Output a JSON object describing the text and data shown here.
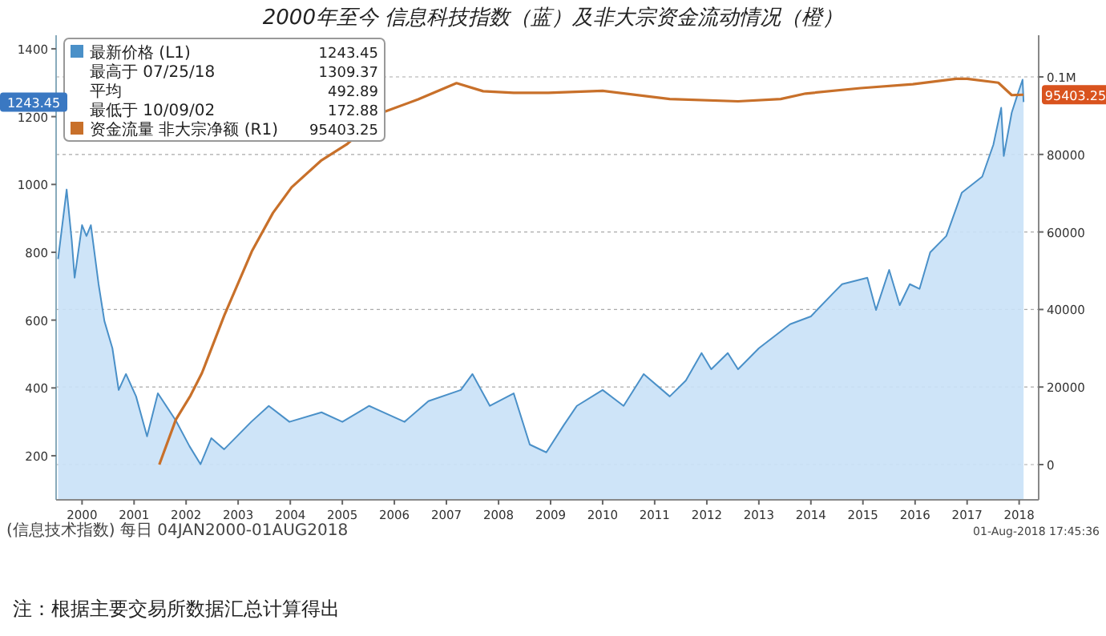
{
  "chart_data": {
    "type": "area",
    "title": "2000年至今 信息科技指数（蓝）及非大宗资金流动情况（橙）",
    "xlim": [
      "2000-01-01",
      "2018-11-15"
    ],
    "xticks": [
      {
        "value": "2000-07-01",
        "label": "2000"
      },
      {
        "value": "2001-07-01",
        "label": "2001"
      },
      {
        "value": "2002-07-01",
        "label": "2002"
      },
      {
        "value": "2003-07-01",
        "label": "2003"
      },
      {
        "value": "2004-07-01",
        "label": "2004"
      },
      {
        "value": "2005-07-01",
        "label": "2005"
      },
      {
        "value": "2006-07-01",
        "label": "2006"
      },
      {
        "value": "2007-07-01",
        "label": "2007"
      },
      {
        "value": "2008-07-01",
        "label": "2008"
      },
      {
        "value": "2009-07-01",
        "label": "2009"
      },
      {
        "value": "2010-07-01",
        "label": "2010"
      },
      {
        "value": "2011-07-01",
        "label": "2011"
      },
      {
        "value": "2012-07-01",
        "label": "2012"
      },
      {
        "value": "2013-07-01",
        "label": "2013"
      },
      {
        "value": "2014-07-01",
        "label": "2014"
      },
      {
        "value": "2015-07-01",
        "label": "2015"
      },
      {
        "value": "2016-07-01",
        "label": "2016"
      },
      {
        "value": "2017-07-01",
        "label": "2017"
      },
      {
        "value": "2018-07-01",
        "label": "2018"
      }
    ],
    "ylim": [
      70,
      1440
    ],
    "yticks": [
      200,
      400,
      600,
      800,
      1000,
      1200,
      1400
    ],
    "y2lim": [
      -9090,
      110740
    ],
    "y2ticks": [
      0,
      20000,
      40000,
      60000,
      80000,
      {
        "value": 100000,
        "label": "0.1M"
      }
    ],
    "grid": true,
    "legend": "top left",
    "series": [
      {
        "name": "最新价格 (L1)",
        "color": "#4a90c8",
        "x": [
          "2000-01-15",
          "2000-03-15",
          "2000-04-20",
          "2000-05-10",
          "2000-07-01",
          "2000-08-01",
          "2000-09-01",
          "2000-10-25",
          "2000-12-05",
          "2001-01-30",
          "2001-03-15",
          "2001-05-05",
          "2001-07-15",
          "2001-09-30",
          "2001-12-15",
          "2002-04-20",
          "2002-07-25",
          "2002-10-10",
          "2002-12-25",
          "2003-03-25",
          "2003-10-01",
          "2004-02-01",
          "2004-06-25",
          "2005-02-05",
          "2005-07-01",
          "2006-01-05",
          "2006-09-10",
          "2007-02-25",
          "2007-10-10",
          "2007-12-31",
          "2008-05-01",
          "2008-10-15",
          "2009-02-05",
          "2009-06-01",
          "2009-10-01",
          "2010-01-01",
          "2010-07-01",
          "2010-11-25",
          "2011-04-15",
          "2011-10-15",
          "2012-02-05",
          "2012-05-25",
          "2012-08-01",
          "2012-11-25",
          "2013-02-05",
          "2013-07-01",
          "2014-02-05",
          "2014-07-01",
          "2014-12-01",
          "2015-02-05",
          "2015-08-01",
          "2015-10-01",
          "2016-01-01",
          "2016-03-15",
          "2016-05-25",
          "2016-08-01",
          "2016-10-15",
          "2017-02-05",
          "2017-05-25",
          "2017-10-15",
          "2018-01-01",
          "2018-02-25",
          "2018-03-15",
          "2018-05-10",
          "2018-06-15",
          "2018-07-25",
          "2018-08-01"
        ],
        "values": [
          780,
          985,
          834,
          725,
          880,
          848,
          880,
          706,
          597,
          517,
          394,
          441,
          375,
          257,
          384,
          304,
          228,
          175,
          252,
          219,
          300,
          347,
          300,
          328,
          300,
          347,
          300,
          361,
          394,
          441,
          347,
          384,
          233,
          210,
          290,
          347,
          394,
          347,
          441,
          375,
          422,
          503,
          455,
          503,
          455,
          517,
          588,
          611,
          678,
          706,
          725,
          630,
          748,
          644,
          706,
          692,
          800,
          848,
          976,
          1023,
          1117,
          1226,
          1084,
          1212,
          1259,
          1309,
          1243
        ]
      },
      {
        "name": "资金流量 非大宗净额 (R1)",
        "type": "line",
        "axis": "y2",
        "color": "#c8702a",
        "x": [
          "2001-12-25",
          "2002-04-20",
          "2002-08-01",
          "2002-10-20",
          "2003-03-25",
          "2003-10-05",
          "2004-03-01",
          "2004-07-10",
          "2005-02-05",
          "2005-08-01",
          "2006-04-15",
          "2006-12-15",
          "2007-09-10",
          "2008-03-15",
          "2008-10-15",
          "2009-06-15",
          "2010-07-01",
          "2011-10-15",
          "2013-02-05",
          "2013-12-01",
          "2014-05-25",
          "2015-06-15",
          "2016-06-15",
          "2017-04-15",
          "2017-07-01",
          "2018-02-05",
          "2018-05-10",
          "2018-08-01"
        ],
        "values": [
          0,
          11600,
          17800,
          23600,
          38400,
          55000,
          64900,
          71500,
          78500,
          82600,
          90900,
          94200,
          98400,
          96300,
          95900,
          95900,
          96400,
          94300,
          93700,
          94300,
          95700,
          97100,
          98100,
          99500,
          99500,
          98500,
          95300,
          95400
        ]
      }
    ],
    "annotations": [
      "最高于 07/25/18",
      "1309.37",
      "平均",
      "492.89",
      "最低于 10/09/02",
      "172.88",
      "1243.45",
      "95403.25",
      "1243.45",
      "95403.25",
      "(信息技术指数) 每日 04JAN2000-01AUG2018",
      "01-Aug-2018 17:45:36",
      "注：根据主要交易所数据汇总计算得出"
    ]
  }
}
